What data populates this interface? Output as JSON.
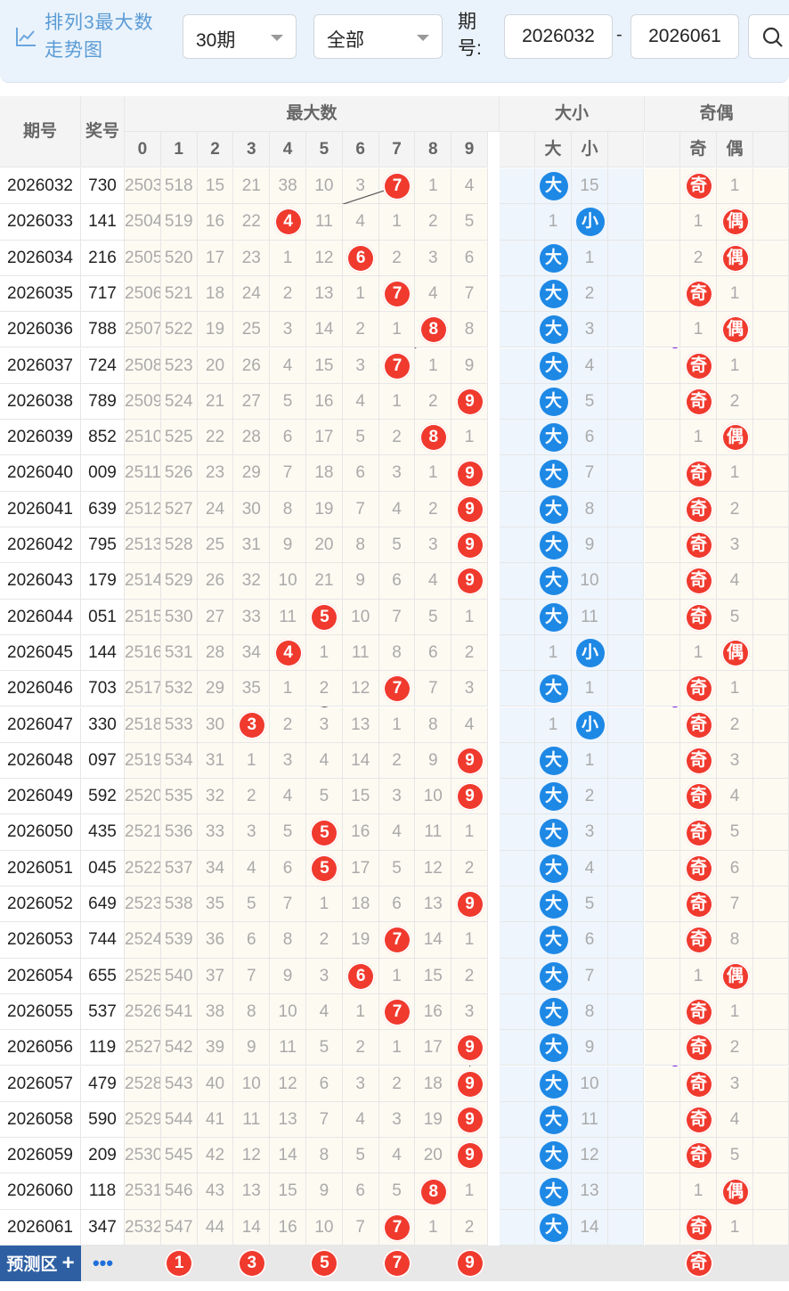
{
  "app": {
    "title": "排列3最大数走势图",
    "period_select": "30期",
    "filter_select": "全部",
    "issue_label": "期号:",
    "issue_from": "2026032",
    "issue_to": "2026061",
    "range_separator": "-"
  },
  "table": {
    "headers": {
      "issue": "期号",
      "award": "奖号",
      "max_group": "最大数",
      "size_group": "大小",
      "oddeven_group": "奇偶",
      "digits": [
        "0",
        "1",
        "2",
        "3",
        "4",
        "5",
        "6",
        "7",
        "8",
        "9"
      ],
      "big": "大",
      "small": "小",
      "odd": "奇",
      "even": "偶"
    },
    "rows": [
      {
        "issue": "2026032",
        "award": "730",
        "max": 7,
        "miss": [
          "2503",
          "518",
          "15",
          "21",
          "38",
          "10",
          "3",
          "",
          "1",
          "4"
        ],
        "size": "大",
        "size_miss": "15",
        "parity": "奇",
        "parity_miss": "1"
      },
      {
        "issue": "2026033",
        "award": "141",
        "max": 4,
        "miss": [
          "2504",
          "519",
          "16",
          "22",
          "",
          "11",
          "4",
          "1",
          "2",
          "5"
        ],
        "size": "小",
        "size_miss": "1",
        "parity": "偶",
        "parity_miss": "1"
      },
      {
        "issue": "2026034",
        "award": "216",
        "max": 6,
        "miss": [
          "2505",
          "520",
          "17",
          "23",
          "1",
          "12",
          "",
          "2",
          "3",
          "6"
        ],
        "size": "大",
        "size_miss": "1",
        "parity": "偶",
        "parity_miss": "2"
      },
      {
        "issue": "2026035",
        "award": "717",
        "max": 7,
        "miss": [
          "2506",
          "521",
          "18",
          "24",
          "2",
          "13",
          "1",
          "",
          "4",
          "7"
        ],
        "size": "大",
        "size_miss": "2",
        "parity": "奇",
        "parity_miss": "1"
      },
      {
        "issue": "2026036",
        "award": "788",
        "max": 8,
        "miss": [
          "2507",
          "522",
          "19",
          "25",
          "3",
          "14",
          "2",
          "1",
          "",
          "8"
        ],
        "size": "大",
        "size_miss": "3",
        "parity": "偶",
        "parity_miss": "1"
      },
      {
        "issue": "2026037",
        "award": "724",
        "max": 7,
        "miss": [
          "2508",
          "523",
          "20",
          "26",
          "4",
          "15",
          "3",
          "",
          "1",
          "9"
        ],
        "size": "大",
        "size_miss": "4",
        "parity": "奇",
        "parity_miss": "1"
      },
      {
        "issue": "2026038",
        "award": "789",
        "max": 9,
        "miss": [
          "2509",
          "524",
          "21",
          "27",
          "5",
          "16",
          "4",
          "1",
          "2",
          ""
        ],
        "size": "大",
        "size_miss": "5",
        "parity": "奇",
        "parity_miss": "2"
      },
      {
        "issue": "2026039",
        "award": "852",
        "max": 8,
        "miss": [
          "2510",
          "525",
          "22",
          "28",
          "6",
          "17",
          "5",
          "2",
          "",
          "1"
        ],
        "size": "大",
        "size_miss": "6",
        "parity": "偶",
        "parity_miss": "1"
      },
      {
        "issue": "2026040",
        "award": "009",
        "max": 9,
        "miss": [
          "2511",
          "526",
          "23",
          "29",
          "7",
          "18",
          "6",
          "3",
          "1",
          ""
        ],
        "size": "大",
        "size_miss": "7",
        "parity": "奇",
        "parity_miss": "1"
      },
      {
        "issue": "2026041",
        "award": "639",
        "max": 9,
        "miss": [
          "2512",
          "527",
          "24",
          "30",
          "8",
          "19",
          "7",
          "4",
          "2",
          ""
        ],
        "size": "大",
        "size_miss": "8",
        "parity": "奇",
        "parity_miss": "2"
      },
      {
        "issue": "2026042",
        "award": "795",
        "max": 9,
        "miss": [
          "2513",
          "528",
          "25",
          "31",
          "9",
          "20",
          "8",
          "5",
          "3",
          ""
        ],
        "size": "大",
        "size_miss": "9",
        "parity": "奇",
        "parity_miss": "3"
      },
      {
        "issue": "2026043",
        "award": "179",
        "max": 9,
        "miss": [
          "2514",
          "529",
          "26",
          "32",
          "10",
          "21",
          "9",
          "6",
          "4",
          ""
        ],
        "size": "大",
        "size_miss": "10",
        "parity": "奇",
        "parity_miss": "4"
      },
      {
        "issue": "2026044",
        "award": "051",
        "max": 5,
        "miss": [
          "2515",
          "530",
          "27",
          "33",
          "11",
          "",
          "10",
          "7",
          "5",
          "1"
        ],
        "size": "大",
        "size_miss": "11",
        "parity": "奇",
        "parity_miss": "5"
      },
      {
        "issue": "2026045",
        "award": "144",
        "max": 4,
        "miss": [
          "2516",
          "531",
          "28",
          "34",
          "",
          "1",
          "11",
          "8",
          "6",
          "2"
        ],
        "size": "小",
        "size_miss": "1",
        "parity": "偶",
        "parity_miss": "1"
      },
      {
        "issue": "2026046",
        "award": "703",
        "max": 7,
        "miss": [
          "2517",
          "532",
          "29",
          "35",
          "1",
          "2",
          "12",
          "",
          "7",
          "3"
        ],
        "size": "大",
        "size_miss": "1",
        "parity": "奇",
        "parity_miss": "1"
      },
      {
        "issue": "2026047",
        "award": "330",
        "max": 3,
        "miss": [
          "2518",
          "533",
          "30",
          "",
          "2",
          "3",
          "13",
          "1",
          "8",
          "4"
        ],
        "size": "小",
        "size_miss": "1",
        "parity": "奇",
        "parity_miss": "2"
      },
      {
        "issue": "2026048",
        "award": "097",
        "max": 9,
        "miss": [
          "2519",
          "534",
          "31",
          "1",
          "3",
          "4",
          "14",
          "2",
          "9",
          ""
        ],
        "size": "大",
        "size_miss": "1",
        "parity": "奇",
        "parity_miss": "3"
      },
      {
        "issue": "2026049",
        "award": "592",
        "max": 9,
        "miss": [
          "2520",
          "535",
          "32",
          "2",
          "4",
          "5",
          "15",
          "3",
          "10",
          ""
        ],
        "size": "大",
        "size_miss": "2",
        "parity": "奇",
        "parity_miss": "4"
      },
      {
        "issue": "2026050",
        "award": "435",
        "max": 5,
        "miss": [
          "2521",
          "536",
          "33",
          "3",
          "5",
          "",
          "16",
          "4",
          "11",
          "1"
        ],
        "size": "大",
        "size_miss": "3",
        "parity": "奇",
        "parity_miss": "5"
      },
      {
        "issue": "2026051",
        "award": "045",
        "max": 5,
        "miss": [
          "2522",
          "537",
          "34",
          "4",
          "6",
          "",
          "17",
          "5",
          "12",
          "2"
        ],
        "size": "大",
        "size_miss": "4",
        "parity": "奇",
        "parity_miss": "6"
      },
      {
        "issue": "2026052",
        "award": "649",
        "max": 9,
        "miss": [
          "2523",
          "538",
          "35",
          "5",
          "7",
          "1",
          "18",
          "6",
          "13",
          ""
        ],
        "size": "大",
        "size_miss": "5",
        "parity": "奇",
        "parity_miss": "7"
      },
      {
        "issue": "2026053",
        "award": "744",
        "max": 7,
        "miss": [
          "2524",
          "539",
          "36",
          "6",
          "8",
          "2",
          "19",
          "",
          "14",
          "1"
        ],
        "size": "大",
        "size_miss": "6",
        "parity": "奇",
        "parity_miss": "8"
      },
      {
        "issue": "2026054",
        "award": "655",
        "max": 6,
        "miss": [
          "2525",
          "540",
          "37",
          "7",
          "9",
          "3",
          "",
          "1",
          "15",
          "2"
        ],
        "size": "大",
        "size_miss": "7",
        "parity": "偶",
        "parity_miss": "1"
      },
      {
        "issue": "2026055",
        "award": "537",
        "max": 7,
        "miss": [
          "2526",
          "541",
          "38",
          "8",
          "10",
          "4",
          "1",
          "",
          "16",
          "3"
        ],
        "size": "大",
        "size_miss": "8",
        "parity": "奇",
        "parity_miss": "1"
      },
      {
        "issue": "2026056",
        "award": "119",
        "max": 9,
        "miss": [
          "2527",
          "542",
          "39",
          "9",
          "11",
          "5",
          "2",
          "1",
          "17",
          ""
        ],
        "size": "大",
        "size_miss": "9",
        "parity": "奇",
        "parity_miss": "2"
      },
      {
        "issue": "2026057",
        "award": "479",
        "max": 9,
        "miss": [
          "2528",
          "543",
          "40",
          "10",
          "12",
          "6",
          "3",
          "2",
          "18",
          ""
        ],
        "size": "大",
        "size_miss": "10",
        "parity": "奇",
        "parity_miss": "3"
      },
      {
        "issue": "2026058",
        "award": "590",
        "max": 9,
        "miss": [
          "2529",
          "544",
          "41",
          "11",
          "13",
          "7",
          "4",
          "3",
          "19",
          ""
        ],
        "size": "大",
        "size_miss": "11",
        "parity": "奇",
        "parity_miss": "4"
      },
      {
        "issue": "2026059",
        "award": "209",
        "max": 9,
        "miss": [
          "2530",
          "545",
          "42",
          "12",
          "14",
          "8",
          "5",
          "4",
          "20",
          ""
        ],
        "size": "大",
        "size_miss": "12",
        "parity": "奇",
        "parity_miss": "5"
      },
      {
        "issue": "2026060",
        "award": "118",
        "max": 8,
        "miss": [
          "2531",
          "546",
          "43",
          "13",
          "15",
          "9",
          "6",
          "5",
          "",
          "1"
        ],
        "size": "大",
        "size_miss": "13",
        "parity": "偶",
        "parity_miss": "1"
      },
      {
        "issue": "2026061",
        "award": "347",
        "max": 7,
        "miss": [
          "2532",
          "547",
          "44",
          "14",
          "16",
          "10",
          "7",
          "",
          "1",
          "2"
        ],
        "size": "大",
        "size_miss": "14",
        "parity": "奇",
        "parity_miss": "1"
      }
    ],
    "prediction": {
      "label": "预测区",
      "plus": "+",
      "more": "•••",
      "balls": [
        "1",
        "3",
        "5",
        "7",
        "9"
      ],
      "parity": "奇"
    }
  },
  "colors": {
    "ball_red": "#f03a2e",
    "ball_blue": "#1e88e5",
    "trend_line": "#8b2be2",
    "title_blue": "#5b9bd5",
    "pred_bg": "#2e5fa3"
  },
  "icons": [
    "line-chart-icon",
    "chevron-down-icon",
    "search-icon",
    "down-arrow-icon"
  ]
}
